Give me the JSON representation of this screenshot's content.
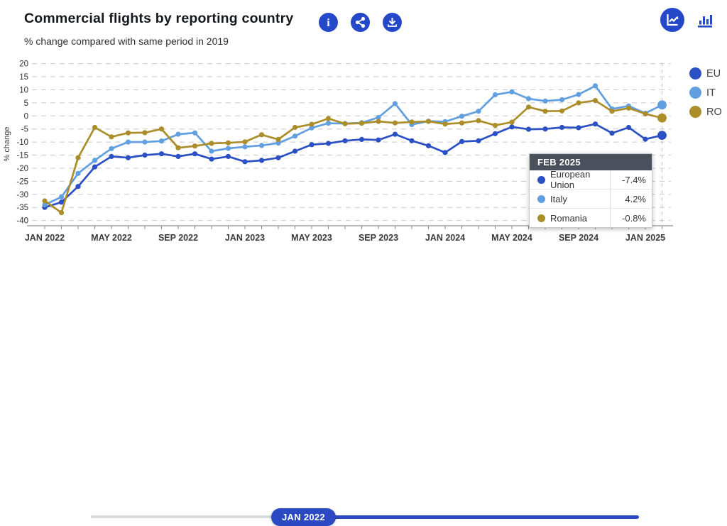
{
  "header": {
    "title": "Commercial flights by reporting country",
    "subtitle": "% change compared with same period in 2019",
    "buttons": [
      {
        "icon": "info-icon"
      },
      {
        "icon": "share-icon"
      },
      {
        "icon": "download-icon"
      }
    ],
    "chart_type_toggles": [
      {
        "icon": "line-chart-icon",
        "selected": true
      },
      {
        "icon": "bar-chart-icon",
        "selected": false
      }
    ]
  },
  "legend": [
    {
      "label": "EU",
      "color": "#2b50c4"
    },
    {
      "label": "IT",
      "color": "#629fe0"
    },
    {
      "label": "RO",
      "color": "#ab8d2a"
    }
  ],
  "tooltip": {
    "title": "FEB 2025",
    "rows": [
      {
        "label": "European Union",
        "value": "-7.4%",
        "color": "#2b50c4"
      },
      {
        "label": "Italy",
        "value": "4.2%",
        "color": "#629fe0"
      },
      {
        "label": "Romania",
        "value": "-0.8%",
        "color": "#ab8d2a"
      }
    ]
  },
  "slider": {
    "handle_label": "JAN 2022"
  },
  "chart_data": {
    "type": "line",
    "title": "Commercial flights by reporting country",
    "subtitle": "% change compared with same period in 2019",
    "ylabel": "% change",
    "ylim": [
      -40,
      20
    ],
    "y_ticks": [
      20,
      15,
      10,
      5,
      0,
      -5,
      -10,
      -15,
      -20,
      -25,
      -30,
      -35,
      -40
    ],
    "grid": "dashed",
    "legend_position": "right",
    "x_tick_every": 4,
    "highlight_x": "FEB 2025",
    "x": [
      "JAN 2022",
      "FEB 2022",
      "MAR 2022",
      "APR 2022",
      "MAY 2022",
      "JUN 2022",
      "JUL 2022",
      "AUG 2022",
      "SEP 2022",
      "OCT 2022",
      "NOV 2022",
      "DEC 2022",
      "JAN 2023",
      "FEB 2023",
      "MAR 2023",
      "APR 2023",
      "MAY 2023",
      "JUN 2023",
      "JUL 2023",
      "AUG 2023",
      "SEP 2023",
      "OCT 2023",
      "NOV 2023",
      "DEC 2023",
      "JAN 2024",
      "FEB 2024",
      "MAR 2024",
      "APR 2024",
      "MAY 2024",
      "JUN 2024",
      "JUL 2024",
      "AUG 2024",
      "SEP 2024",
      "OCT 2024",
      "NOV 2024",
      "DEC 2024",
      "JAN 2025",
      "FEB 2025"
    ],
    "series": [
      {
        "name": "EU",
        "full_name": "European Union",
        "color": "#2b50c4",
        "values": [
          -35,
          -33,
          -27,
          -19.5,
          -15.5,
          -16,
          -15,
          -14.5,
          -15.5,
          -14.5,
          -16.5,
          -15.5,
          -17.5,
          -17,
          -16,
          -13.5,
          -11,
          -10.5,
          -9.5,
          -9,
          -9.2,
          -7,
          -9.5,
          -11.4,
          -14,
          -9.8,
          -9.5,
          -6.8,
          -4.2,
          -5.1,
          -5,
          -4.4,
          -4.5,
          -3.1,
          -6.6,
          -4.4,
          -8.9,
          -7.4
        ]
      },
      {
        "name": "IT",
        "full_name": "Italy",
        "color": "#629fe0",
        "values": [
          -34,
          -31,
          -22,
          -17,
          -12.5,
          -10,
          -10,
          -9.6,
          -7,
          -6.5,
          -13.5,
          -12.4,
          -11.8,
          -11.3,
          -10.4,
          -7.7,
          -4.6,
          -2.8,
          -2.9,
          -2.6,
          -0.6,
          4.7,
          -3.3,
          -2,
          -2.2,
          -0.1,
          1.8,
          8.1,
          9.2,
          6.6,
          5.7,
          6.2,
          8.2,
          11.5,
          2.7,
          3.8,
          1,
          4.2
        ]
      },
      {
        "name": "RO",
        "full_name": "Romania",
        "color": "#ab8d2a",
        "values": [
          -32.5,
          -37,
          -16,
          -4.4,
          -8,
          -6.5,
          -6.4,
          -5,
          -12.2,
          -11.5,
          -10.5,
          -10.3,
          -9.9,
          -7.2,
          -9,
          -4.4,
          -3.2,
          -1,
          -3,
          -2.8,
          -2.1,
          -2.7,
          -2.3,
          -2.1,
          -3.1,
          -2.7,
          -1.8,
          -3.6,
          -2.4,
          3.4,
          1.8,
          1.9,
          5,
          5.9,
          1.8,
          3,
          0.8,
          -0.8
        ]
      }
    ]
  }
}
